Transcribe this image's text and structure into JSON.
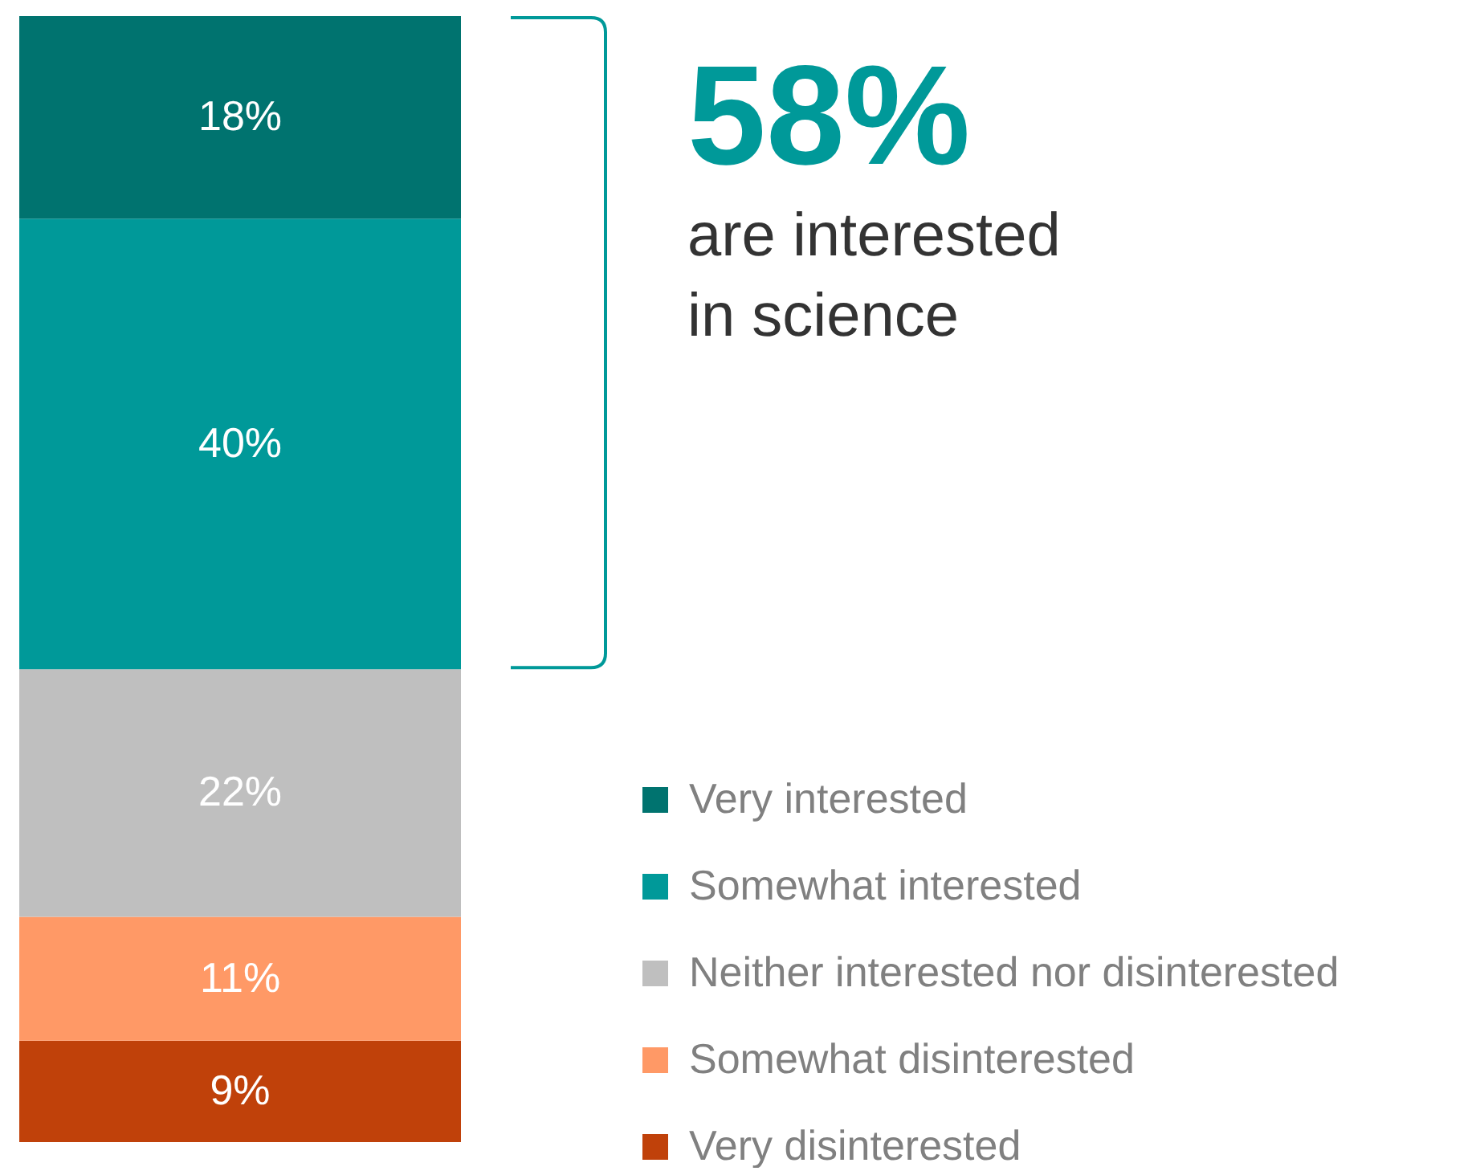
{
  "chart_data": {
    "type": "bar",
    "stacked": true,
    "categories": [
      null
    ],
    "legend": "bottom right",
    "annotations": [
      "58%",
      "are interested",
      "in science"
    ],
    "series": [
      {
        "name": "Very disinterested",
        "color": "#c0410a",
        "values": [
          9
        ],
        "value_labels": [
          "9%"
        ]
      },
      {
        "name": "Somewhat disinterested",
        "color": "#ff9966",
        "values": [
          11
        ],
        "value_labels": [
          "11%"
        ]
      },
      {
        "name": "Neither interested nor disinterested",
        "color": "#bfbfbf",
        "values": [
          22
        ],
        "value_labels": [
          "22%"
        ]
      },
      {
        "name": "Somewhat interested",
        "color": "#009999",
        "values": [
          40
        ],
        "value_labels": [
          "40%"
        ]
      },
      {
        "name": "Very interested",
        "color": "#00736f",
        "values": [
          18
        ],
        "value_labels": [
          "18%"
        ]
      }
    ]
  }
}
